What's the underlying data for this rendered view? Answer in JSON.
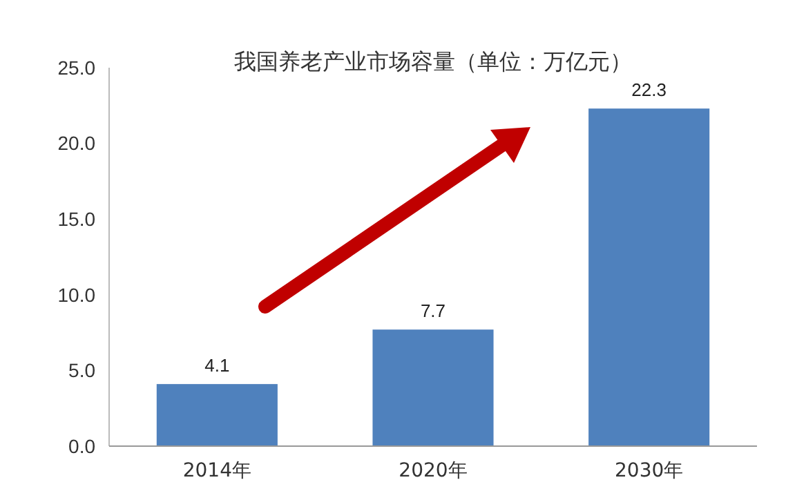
{
  "chart_data": {
    "type": "bar",
    "title": "我国养老产业市场容量（单位：万亿元）",
    "categories": [
      "2014年",
      "2020年",
      "2030年"
    ],
    "values": [
      4.1,
      7.7,
      22.3
    ],
    "color": "#4f81bd",
    "ylim": [
      0,
      25
    ],
    "yticks": [
      {
        "value": 0,
        "label": "0.0"
      },
      {
        "value": 5,
        "label": "5.0"
      },
      {
        "value": 10,
        "label": "10.0"
      },
      {
        "value": 15,
        "label": "15.0"
      },
      {
        "value": 20,
        "label": "20.0"
      },
      {
        "value": 25,
        "label": "25.0"
      }
    ],
    "grid": false,
    "data_labels": true
  }
}
